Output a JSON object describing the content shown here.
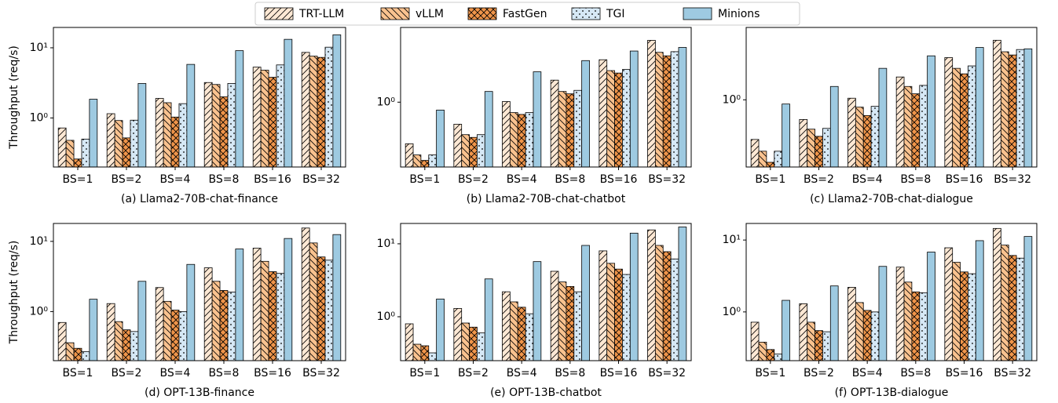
{
  "chart_data": [
    {
      "type": "bar",
      "title": "(a) Llama2-70B-chat-finance",
      "y_label": "Throughput (req/s)",
      "log_scale": true,
      "categories": [
        "BS=1",
        "BS=2",
        "BS=4",
        "BS=8",
        "BS=16",
        "BS=32"
      ],
      "ylim": [
        0.2,
        19.5
      ],
      "yticks": [
        {
          "value": 1,
          "label": "10⁰"
        },
        {
          "value": 10,
          "label": "10¹"
        }
      ],
      "series": [
        {
          "name": "TRT-LLM",
          "color": "#fde8d4",
          "hatch": "//",
          "values": [
            0.72,
            1.15,
            1.9,
            3.2,
            5.3,
            8.6
          ]
        },
        {
          "name": "vLLM",
          "color": "#f9c28f",
          "hatch": "\\\\",
          "values": [
            0.48,
            0.92,
            1.65,
            3.0,
            4.8,
            7.6
          ]
        },
        {
          "name": "FastGen",
          "color": "#f0954a",
          "hatch": "xx",
          "values": [
            0.26,
            0.52,
            1.03,
            2.0,
            3.8,
            7.3
          ]
        },
        {
          "name": "TGI",
          "color": "#d6e8f5",
          "hatch": "..",
          "values": [
            0.5,
            0.93,
            1.6,
            3.1,
            5.7,
            10.2
          ]
        },
        {
          "name": "Minions",
          "color": "#9ecae1",
          "hatch": "",
          "values": [
            1.85,
            3.1,
            5.8,
            9.1,
            13.2,
            15.3
          ]
        }
      ]
    },
    {
      "type": "bar",
      "title": "(b) Llama2-70B-chat-chatbot",
      "log_scale": true,
      "categories": [
        "BS=1",
        "BS=2",
        "BS=4",
        "BS=8",
        "BS=16",
        "BS=32"
      ],
      "ylim": [
        0.13,
        10.5
      ],
      "yticks": [
        {
          "value": 1,
          "label": "10⁰"
        }
      ],
      "series": [
        {
          "color": "#fde8d4",
          "hatch": "//",
          "values": [
            0.27,
            0.5,
            1.02,
            2.0,
            3.8,
            7.0
          ]
        },
        {
          "color": "#f9c28f",
          "hatch": "\\\\",
          "values": [
            0.19,
            0.36,
            0.72,
            1.4,
            2.7,
            4.8
          ]
        },
        {
          "color": "#f0954a",
          "hatch": "xx",
          "values": [
            0.16,
            0.33,
            0.68,
            1.3,
            2.5,
            4.3
          ]
        },
        {
          "color": "#d6e8f5",
          "hatch": "..",
          "values": [
            0.19,
            0.36,
            0.72,
            1.45,
            2.8,
            4.9
          ]
        },
        {
          "color": "#9ecae1",
          "hatch": "",
          "values": [
            0.78,
            1.4,
            2.6,
            3.7,
            5.0,
            5.6
          ]
        }
      ]
    },
    {
      "type": "bar",
      "title": "(c) Llama2-70B-chat-dialogue",
      "log_scale": true,
      "categories": [
        "BS=1",
        "BS=2",
        "BS=4",
        "BS=8",
        "BS=16",
        "BS=32"
      ],
      "ylim": [
        0.13,
        9
      ],
      "yticks": [
        {
          "value": 1,
          "label": "10⁰"
        }
      ],
      "series": [
        {
          "color": "#fde8d4",
          "hatch": "//",
          "values": [
            0.3,
            0.55,
            1.05,
            2.0,
            3.6,
            6.1
          ]
        },
        {
          "color": "#f9c28f",
          "hatch": "\\\\",
          "values": [
            0.21,
            0.41,
            0.8,
            1.5,
            2.6,
            4.3
          ]
        },
        {
          "color": "#f0954a",
          "hatch": "xx",
          "values": [
            0.15,
            0.33,
            0.62,
            1.2,
            2.2,
            3.9
          ]
        },
        {
          "color": "#d6e8f5",
          "hatch": "..",
          "values": [
            0.21,
            0.42,
            0.82,
            1.55,
            2.8,
            4.6
          ]
        },
        {
          "color": "#9ecae1",
          "hatch": "",
          "values": [
            0.88,
            1.5,
            2.6,
            3.8,
            4.9,
            4.7
          ]
        }
      ]
    },
    {
      "type": "bar",
      "title": "(d) OPT-13B-finance",
      "y_label": "Throughput (req/s)",
      "log_scale": true,
      "categories": [
        "BS=1",
        "BS=2",
        "BS=4",
        "BS=8",
        "BS=16",
        "BS=32"
      ],
      "ylim": [
        0.2,
        18
      ],
      "yticks": [
        {
          "value": 1,
          "label": "10⁰"
        },
        {
          "value": 10,
          "label": "10¹"
        }
      ],
      "series": [
        {
          "color": "#fde8d4",
          "hatch": "//",
          "values": [
            0.7,
            1.3,
            2.2,
            4.2,
            8.0,
            15.5
          ]
        },
        {
          "color": "#f9c28f",
          "hatch": "\\\\",
          "values": [
            0.36,
            0.72,
            1.4,
            2.7,
            5.2,
            9.5
          ]
        },
        {
          "color": "#f0954a",
          "hatch": "xx",
          "values": [
            0.3,
            0.55,
            1.05,
            2.0,
            3.7,
            6.0
          ]
        },
        {
          "color": "#d6e8f5",
          "hatch": "..",
          "values": [
            0.27,
            0.52,
            1.0,
            1.9,
            3.5,
            5.4
          ]
        },
        {
          "color": "#9ecae1",
          "hatch": "",
          "values": [
            1.5,
            2.7,
            4.7,
            7.8,
            11.0,
            12.5
          ]
        }
      ]
    },
    {
      "type": "bar",
      "title": "(e) OPT-13B-chatbot",
      "log_scale": true,
      "categories": [
        "BS=1",
        "BS=2",
        "BS=4",
        "BS=8",
        "BS=16",
        "BS=32"
      ],
      "ylim": [
        0.25,
        19
      ],
      "yticks": [
        {
          "value": 1,
          "label": "10⁰"
        },
        {
          "value": 10,
          "label": "10¹"
        }
      ],
      "series": [
        {
          "color": "#fde8d4",
          "hatch": "//",
          "values": [
            0.8,
            1.3,
            2.2,
            4.2,
            8.0,
            15.5
          ]
        },
        {
          "color": "#f9c28f",
          "hatch": "\\\\",
          "values": [
            0.42,
            0.82,
            1.6,
            3.0,
            5.4,
            9.5
          ]
        },
        {
          "color": "#f0954a",
          "hatch": "xx",
          "values": [
            0.4,
            0.72,
            1.35,
            2.6,
            4.5,
            7.8
          ]
        },
        {
          "color": "#d6e8f5",
          "hatch": "..",
          "values": [
            0.32,
            0.6,
            1.1,
            2.2,
            3.8,
            6.2
          ]
        },
        {
          "color": "#9ecae1",
          "hatch": "",
          "values": [
            1.75,
            3.3,
            5.7,
            9.5,
            14.0,
            17.0
          ]
        }
      ]
    },
    {
      "type": "bar",
      "title": "(f) OPT-13B-dialogue",
      "log_scale": true,
      "categories": [
        "BS=1",
        "BS=2",
        "BS=4",
        "BS=8",
        "BS=16",
        "BS=32"
      ],
      "ylim": [
        0.21,
        17
      ],
      "yticks": [
        {
          "value": 1,
          "label": "10⁰"
        },
        {
          "value": 10,
          "label": "10¹"
        }
      ],
      "series": [
        {
          "color": "#fde8d4",
          "hatch": "//",
          "values": [
            0.72,
            1.3,
            2.2,
            4.2,
            7.8,
            14.5
          ]
        },
        {
          "color": "#f9c28f",
          "hatch": "\\\\",
          "values": [
            0.38,
            0.72,
            1.35,
            2.6,
            4.9,
            8.5
          ]
        },
        {
          "color": "#f0954a",
          "hatch": "xx",
          "values": [
            0.3,
            0.55,
            1.05,
            1.9,
            3.6,
            6.1
          ]
        },
        {
          "color": "#d6e8f5",
          "hatch": "..",
          "values": [
            0.26,
            0.53,
            1.0,
            1.85,
            3.4,
            5.6
          ]
        },
        {
          "color": "#9ecae1",
          "hatch": "",
          "values": [
            1.45,
            2.3,
            4.3,
            6.8,
            9.8,
            11.2
          ]
        }
      ]
    }
  ]
}
